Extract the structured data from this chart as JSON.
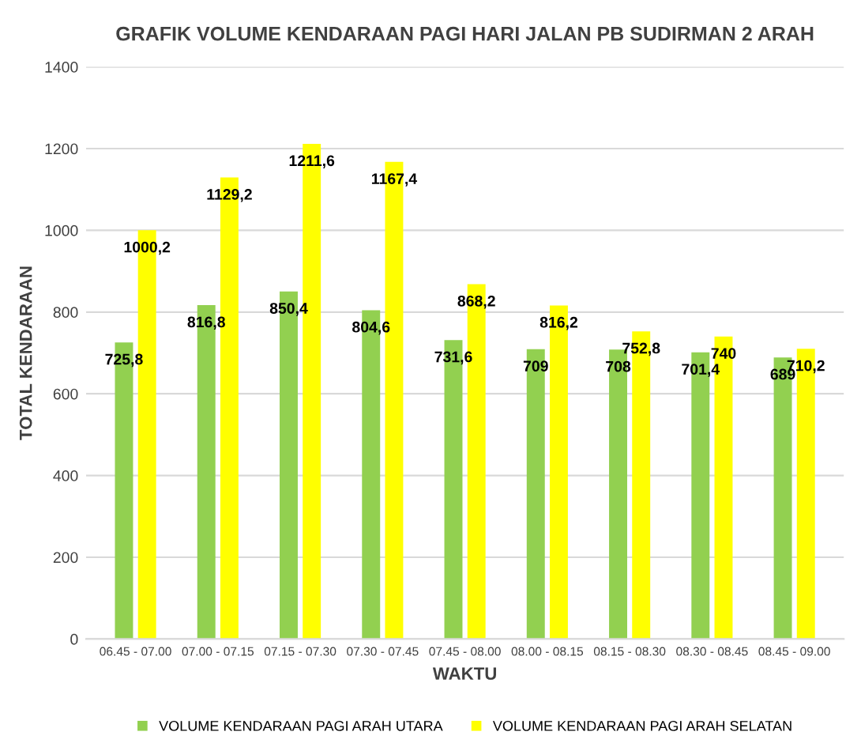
{
  "chart_data": {
    "type": "bar",
    "title": "GRAFIK VOLUME KENDARAAN PAGI HARI JALAN PB SUDIRMAN 2 ARAH",
    "xlabel": "WAKTU",
    "ylabel": "TOTAL KENDARAAN",
    "categories": [
      "06.45 - 07.00",
      "07.00 - 07.15",
      "07.15 - 07.30",
      "07.30 - 07.45",
      "07.45 - 08.00",
      "08.00 - 08.15",
      "08.15 - 08.30",
      "08.30 - 08.45",
      "08.45 - 09.00"
    ],
    "series": [
      {
        "name": "VOLUME KENDARAAN PAGI ARAH UTARA",
        "color": "#92d050",
        "values": [
          725.8,
          816.8,
          850.4,
          804.6,
          731.6,
          709,
          708,
          701.4,
          689
        ],
        "value_labels": [
          "725,8",
          "816,8",
          "850,4",
          "804,6",
          "731,6",
          "709",
          "708",
          "701,4",
          "689"
        ]
      },
      {
        "name": "VOLUME KENDARAAN PAGI ARAH SELATAN",
        "color": "#ffff00",
        "values": [
          1000.2,
          1129.2,
          1211.6,
          1167.4,
          868.2,
          816.2,
          752.8,
          740,
          710.2
        ],
        "value_labels": [
          "1000,2",
          "1129,2",
          "1211,6",
          "1167,4",
          "868,2",
          "816,2",
          "752,8",
          "740",
          "710,2"
        ]
      }
    ],
    "ylim": [
      0,
      1400
    ],
    "yticks": [
      0,
      200,
      400,
      600,
      800,
      1000,
      1200,
      1400
    ],
    "grid": "y",
    "legend": "bottom"
  }
}
